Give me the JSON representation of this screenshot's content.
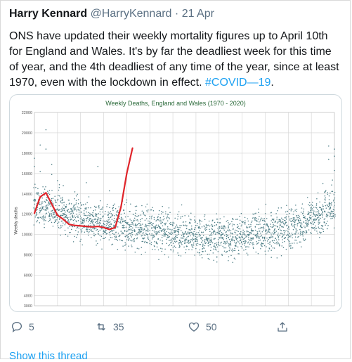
{
  "tweet": {
    "display_name": "Harry Kennard",
    "handle": "@HarryKennard",
    "separator": "·",
    "date": "21 Apr",
    "text_before": "ONS have updated their weekly mortality figures up to April 10th for England and Wales.  It's by far the deadliest week for this time of year, and the 4th deadliest of any time of the year, since at least 1970, even with the lockdown in effect. ",
    "hashtag": "#COVID—19",
    "text_after": "."
  },
  "actions": {
    "replies": "5",
    "retweets": "35",
    "likes": "50"
  },
  "show_thread": "Show this thread",
  "colors": {
    "link": "#1da1f2",
    "scatter": "#4f7f87",
    "highlight_line": "#e0242a",
    "grid": "#d3d3d3"
  },
  "chart_data": {
    "type": "scatter",
    "title": "Weekly Deaths, England and Wales (1970 - 2020)",
    "ylabel": "Weekly deaths",
    "xlabel": "",
    "ylim": [
      3000,
      22000
    ],
    "yticks": [
      3000,
      4000,
      6000,
      8000,
      10000,
      12000,
      14000,
      16000,
      18000,
      20000,
      22000
    ],
    "x_domain": [
      1,
      53
    ],
    "grid": true,
    "series": [
      {
        "kind": "scatter",
        "envelope": {
          "x": [
            1,
            3,
            5,
            8,
            12,
            16,
            20,
            24,
            28,
            32,
            36,
            40,
            44,
            48,
            51,
            53
          ],
          "y": [
            13000,
            12700,
            12300,
            11700,
            11100,
            10800,
            10600,
            10300,
            9900,
            9700,
            9800,
            10100,
            10600,
            11200,
            12000,
            12900
          ]
        },
        "outliers": [
          [
            1,
            17500
          ],
          [
            1,
            16700
          ],
          [
            2,
            18800
          ],
          [
            2,
            16200
          ],
          [
            3,
            20300
          ],
          [
            3,
            18400
          ],
          [
            4,
            15900
          ],
          [
            4,
            16900
          ],
          [
            5,
            15300
          ],
          [
            6,
            14800
          ],
          [
            8,
            14200
          ],
          [
            10,
            15100
          ],
          [
            12,
            16700
          ],
          [
            14,
            14300
          ],
          [
            17,
            13400
          ],
          [
            52,
            18700
          ],
          [
            52,
            17400
          ],
          [
            53,
            18400
          ],
          [
            53,
            17700
          ],
          [
            53,
            16300
          ],
          [
            51,
            15000
          ]
        ]
      },
      {
        "kind": "line",
        "x": [
          1,
          2,
          3,
          4,
          5,
          6,
          7,
          8,
          9,
          10,
          11,
          12,
          13,
          14,
          15,
          16,
          17,
          18
        ],
        "y": [
          12100,
          13700,
          14100,
          13000,
          11900,
          11500,
          11000,
          10900,
          10850,
          10800,
          10750,
          10800,
          10700,
          10500,
          10700,
          12700,
          16000,
          18500
        ]
      }
    ]
  }
}
